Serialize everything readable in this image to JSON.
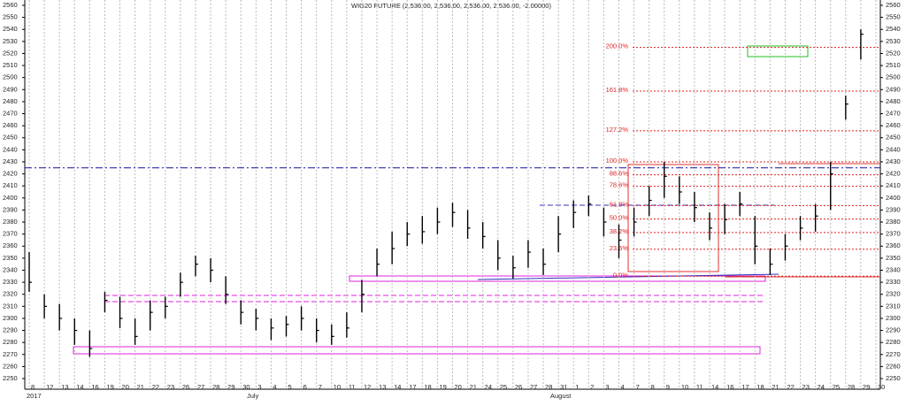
{
  "chart_data": {
    "type": "ohlc",
    "title": "WIG20 FUTURE (2,536.00, 2,536.00, 2,536.00, 2,536.00, -2.00000)",
    "categories": [
      "8",
      "12",
      "13",
      "14",
      "16",
      "19",
      "20",
      "21",
      "22",
      "23",
      "26",
      "27",
      "28",
      "29",
      "30",
      "3",
      "4",
      "5",
      "6",
      "7",
      "10",
      "11",
      "12",
      "13",
      "14",
      "17",
      "18",
      "19",
      "20",
      "21",
      "24",
      "25",
      "26",
      "27",
      "28",
      "31",
      "1",
      "2",
      "3",
      "4",
      "7",
      "8",
      "9",
      "10",
      "11",
      "14",
      "16",
      "17",
      "18",
      "21",
      "22",
      "23",
      "24",
      "25",
      "28",
      "29",
      "30"
    ],
    "period_labels": [
      "2017",
      "July",
      "August"
    ],
    "series": [
      {
        "name": "high",
        "values": [
          2355,
          2320,
          2312,
          2300,
          2290,
          2322,
          2318,
          2300,
          2315,
          2318,
          2338,
          2352,
          2350,
          2335,
          2315,
          2308,
          2300,
          2302,
          2310,
          2300,
          2295,
          2305,
          2332,
          2358,
          2372,
          2380,
          2385,
          2392,
          2396,
          2390,
          2380,
          2365,
          2352,
          2365,
          2358,
          2385,
          2398,
          2402,
          2392,
          2378,
          2392,
          2410,
          2430,
          2418,
          2405,
          2388,
          2395,
          2405,
          2385,
          2358,
          2370,
          2385,
          2395,
          2430,
          2485,
          2540,
          null
        ]
      },
      {
        "name": "low",
        "values": [
          2322,
          2300,
          2290,
          2278,
          2268,
          2305,
          2292,
          2278,
          2290,
          2300,
          2318,
          2335,
          2330,
          2312,
          2295,
          2290,
          2282,
          2285,
          2290,
          2280,
          2278,
          2284,
          2305,
          2335,
          2345,
          2360,
          2362,
          2370,
          2376,
          2366,
          2358,
          2340,
          2333,
          2342,
          2336,
          2355,
          2375,
          2385,
          2368,
          2350,
          2368,
          2385,
          2400,
          2395,
          2380,
          2365,
          2370,
          2385,
          2345,
          2336,
          2348,
          2365,
          2372,
          2390,
          2465,
          2515,
          null
        ]
      },
      {
        "name": "close",
        "color": "#000000",
        "values": [
          2330,
          2310,
          2300,
          2290,
          2275,
          2315,
          2300,
          2285,
          2305,
          2310,
          2330,
          2345,
          2340,
          2320,
          2305,
          2300,
          2292,
          2295,
          2300,
          2290,
          2285,
          2292,
          2320,
          2345,
          2358,
          2370,
          2372,
          2380,
          2388,
          2375,
          2368,
          2350,
          2342,
          2355,
          2345,
          2370,
          2388,
          2395,
          2380,
          2365,
          2380,
          2398,
          2418,
          2405,
          2392,
          2375,
          2382,
          2395,
          2360,
          2345,
          2360,
          2375,
          2385,
          2420,
          2478,
          2536,
          null
        ]
      }
    ],
    "ylim": [
      2250,
      2560
    ],
    "yticks": [
      2250,
      2260,
      2270,
      2280,
      2290,
      2300,
      2310,
      2320,
      2330,
      2340,
      2350,
      2360,
      2370,
      2380,
      2390,
      2400,
      2410,
      2420,
      2430,
      2440,
      2450,
      2460,
      2470,
      2480,
      2490,
      2500,
      2510,
      2520,
      2530,
      2540,
      2550,
      2560
    ],
    "grid": true,
    "reference_line": {
      "value": 2425,
      "color": "#1010a0"
    },
    "fibonacci": {
      "color": "#e02020",
      "levels": [
        {
          "label": "200.0%",
          "value": 2525
        },
        {
          "label": "161.8%",
          "value": 2488.7
        },
        {
          "label": "127.2%",
          "value": 2455.8
        },
        {
          "label": "100.0%",
          "value": 2430
        },
        {
          "label": "88.6%",
          "value": 2419.2
        },
        {
          "label": "78.6%",
          "value": 2409.7
        },
        {
          "label": "61.8%",
          "value": 2393.7
        },
        {
          "label": "50.0%",
          "value": 2382.5
        },
        {
          "label": "38.2%",
          "value": 2371.3
        },
        {
          "label": "23.6%",
          "value": 2357.4
        },
        {
          "label": "0.0%",
          "value": 2335
        }
      ]
    }
  }
}
